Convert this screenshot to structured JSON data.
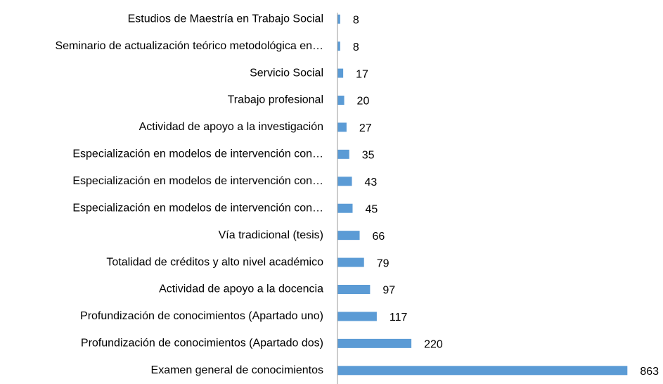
{
  "chart_data": {
    "type": "barh",
    "categories": [
      "Estudios de Maestría en Trabajo Social",
      "Seminario de actualización teórico metodológica en…",
      "Servicio Social",
      "Trabajo profesional",
      "Actividad de apoyo a la investigación",
      "Especialización en modelos de intervención con…",
      "Especialización en modelos de intervención con…",
      "Especialización en modelos de intervención con…",
      "Vía tradicional (tesis)",
      "Totalidad de créditos y alto nivel académico",
      "Actividad de apoyo a la docencia",
      "Profundización de conocimientos (Apartado uno)",
      "Profundización de conocimientos (Apartado dos)",
      "Examen general de conocimientos"
    ],
    "values": [
      8,
      8,
      17,
      20,
      27,
      35,
      43,
      45,
      66,
      79,
      97,
      117,
      220,
      863
    ],
    "color": "#5b9bd5",
    "xlim": [
      0,
      900
    ]
  }
}
